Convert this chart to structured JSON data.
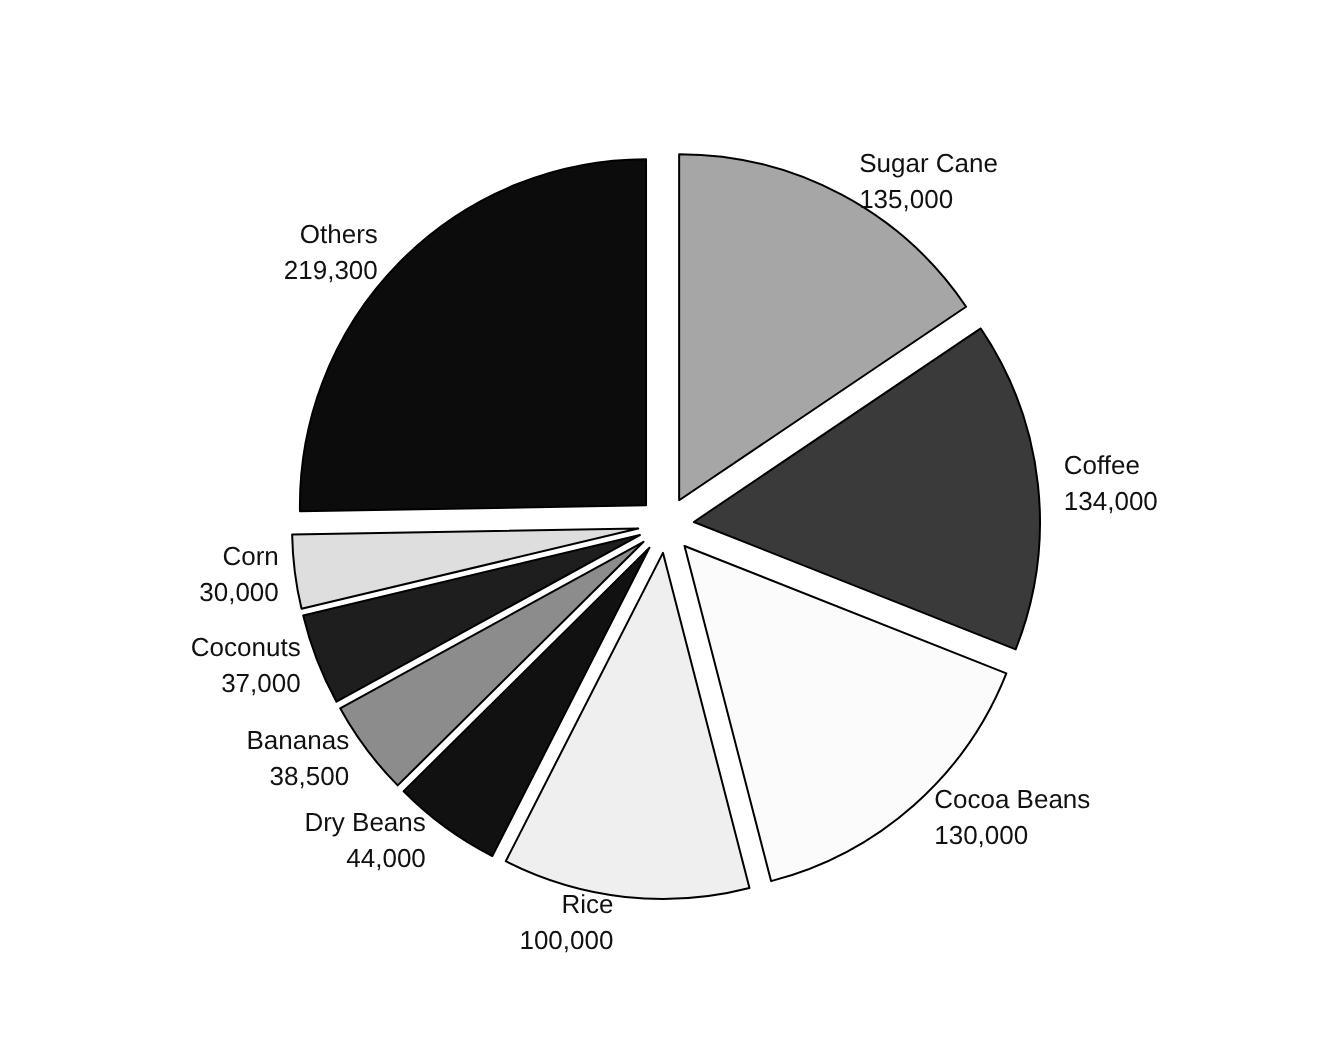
{
  "chart_data": {
    "type": "pie",
    "categories": [
      "Sugar Cane",
      "Coffee",
      "Cocoa Beans",
      "Rice",
      "Dry Beans",
      "Bananas",
      "Coconuts",
      "Corn",
      "Others"
    ],
    "values": [
      135000,
      134000,
      130000,
      100000,
      44000,
      38500,
      37000,
      30000,
      219300
    ],
    "colors": [
      "#a6a6a6",
      "#3a3a3a",
      "#fbfbfb",
      "#efefef",
      "#111111",
      "#8c8c8c",
      "#1e1e1e",
      "#dedede",
      "#0c0c0c"
    ],
    "value_labels": [
      "135,000",
      "134,000",
      "130,000",
      "100,000",
      "44,000",
      "38,500",
      "37,000",
      "30,000",
      "219,300"
    ],
    "legend": false
  }
}
